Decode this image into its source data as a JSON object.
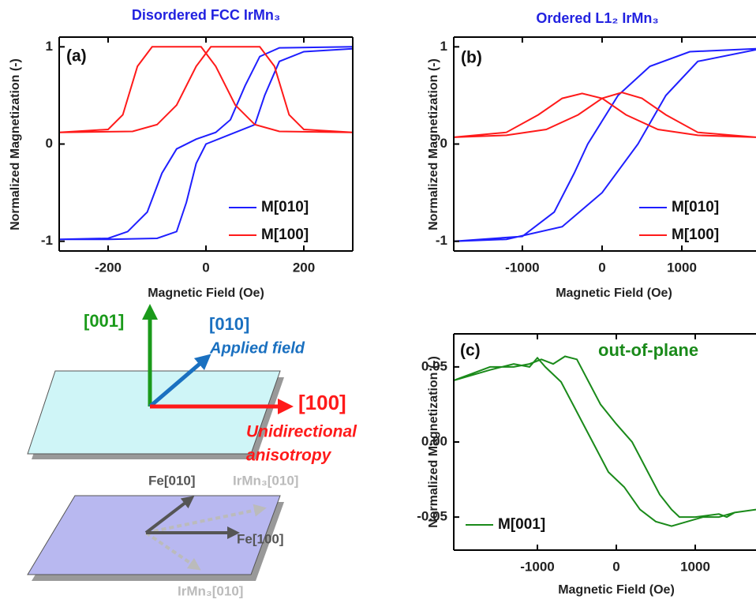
{
  "chart_data": [
    {
      "type": "line",
      "title": "Disordered FCC IrMn₃",
      "panel": "(a)",
      "x_label": "Magnetic Field (Oe)",
      "y_label": "Normalized Magnetization (-)",
      "xlim": [
        -300,
        300
      ],
      "ylim": [
        -1.1,
        1.1
      ],
      "xticks": [
        -200,
        0,
        200
      ],
      "yticks": [
        -1,
        0,
        1
      ],
      "series": [
        {
          "name": "M[010]",
          "color": "#1f1fff",
          "x": [
            300,
            150,
            110,
            80,
            50,
            20,
            -20,
            -60,
            -90,
            -120,
            -160,
            -200,
            -300,
            -200,
            -100,
            -60,
            -40,
            -20,
            0,
            50,
            100,
            120,
            150,
            200,
            300
          ],
          "values": [
            1,
            0.99,
            0.9,
            0.6,
            0.25,
            0.12,
            0.05,
            -0.05,
            -0.3,
            -0.7,
            -0.9,
            -0.97,
            -0.98,
            -0.98,
            -0.97,
            -0.9,
            -0.6,
            -0.2,
            0,
            0.1,
            0.2,
            0.5,
            0.85,
            0.95,
            0.98
          ]
        },
        {
          "name": "M[100]",
          "color": "#ff1a1a",
          "x": [
            -300,
            -200,
            -170,
            -140,
            -110,
            -10,
            20,
            60,
            100,
            150,
            300,
            200,
            170,
            140,
            110,
            10,
            -20,
            -60,
            -100,
            -150,
            -300
          ],
          "values": [
            0.12,
            0.15,
            0.3,
            0.8,
            1,
            1,
            0.8,
            0.4,
            0.2,
            0.13,
            0.12,
            0.15,
            0.3,
            0.8,
            1,
            1,
            0.8,
            0.4,
            0.2,
            0.13,
            0.12
          ]
        }
      ]
    },
    {
      "type": "line",
      "title": "Ordered L1₂ IrMn₃",
      "panel": "(b)",
      "x_label": "Magnetic Field (Oe)",
      "y_label": "Normalized Magnetization (-)",
      "xlim": [
        -1860,
        1930
      ],
      "ylim": [
        -1.1,
        1.1
      ],
      "xticks": [
        -1000,
        0,
        1000
      ],
      "yticks": [
        -1,
        0,
        1
      ],
      "series": [
        {
          "name": "M[010]",
          "color": "#1f1fff",
          "x": [
            1930,
            1100,
            600,
            200,
            -180,
            -350,
            -600,
            -1000,
            -1860,
            -1200,
            -500,
            0,
            450,
            800,
            1200,
            1930
          ],
          "values": [
            0.98,
            0.95,
            0.8,
            0.5,
            0,
            -0.3,
            -0.7,
            -0.95,
            -1,
            -0.98,
            -0.85,
            -0.5,
            0,
            0.5,
            0.85,
            0.97
          ]
        },
        {
          "name": "M[100]",
          "color": "#ff1a1a",
          "x": [
            -1860,
            -1200,
            -800,
            -500,
            -250,
            0,
            300,
            700,
            1200,
            1930,
            1200,
            800,
            500,
            250,
            0,
            -300,
            -700,
            -1200,
            -1860
          ],
          "values": [
            0.07,
            0.12,
            0.3,
            0.47,
            0.52,
            0.47,
            0.3,
            0.15,
            0.09,
            0.07,
            0.12,
            0.3,
            0.47,
            0.53,
            0.47,
            0.3,
            0.15,
            0.09,
            0.07
          ]
        }
      ]
    },
    {
      "type": "line",
      "panel": "(c)",
      "annotation": "out-of-plane",
      "x_label": "Magnetic Field (Oe)",
      "y_label": "Normalized Magnetization (-)",
      "xlim": [
        -2060,
        1770
      ],
      "ylim": [
        -0.072,
        0.072
      ],
      "xticks": [
        -1000,
        0,
        1000
      ],
      "yticks": [
        0.05,
        {
          "value": 0,
          "label": "0.00"
        },
        -0.05
      ],
      "series": [
        {
          "name": "M[001]",
          "color": "#1a8a1a",
          "x": [
            1770,
            1500,
            1400,
            1300,
            1000,
            800,
            700,
            550,
            400,
            300,
            200,
            0,
            -200,
            -350,
            -500,
            -650,
            -800,
            -950,
            -1100,
            -1300,
            -1600,
            -2060,
            -1600,
            -1300,
            -1100,
            -1000,
            -900,
            -700,
            -550,
            -400,
            -250,
            -100,
            100,
            300,
            500,
            700,
            900,
            1100,
            1300,
            1500,
            1770
          ],
          "values": [
            -0.045,
            -0.047,
            -0.05,
            -0.048,
            -0.05,
            -0.05,
            -0.045,
            -0.035,
            -0.02,
            -0.01,
            0,
            0.012,
            0.025,
            0.04,
            0.055,
            0.057,
            0.052,
            0.055,
            0.052,
            0.05,
            0.05,
            0.041,
            0.048,
            0.052,
            0.05,
            0.056,
            0.05,
            0.04,
            0.025,
            0.01,
            -0.005,
            -0.02,
            -0.03,
            -0.045,
            -0.053,
            -0.056,
            -0.053,
            -0.05,
            -0.05,
            -0.047,
            -0.045
          ]
        }
      ]
    }
  ],
  "diagram": {
    "labels": [
      "[001]",
      "[010]",
      "Applied field",
      "[100]",
      "Unidirectional",
      "anisotropy",
      "Fe[010]",
      "IrMn₃[010]",
      "Fe[100]",
      "IrMn₃[010]"
    ]
  }
}
